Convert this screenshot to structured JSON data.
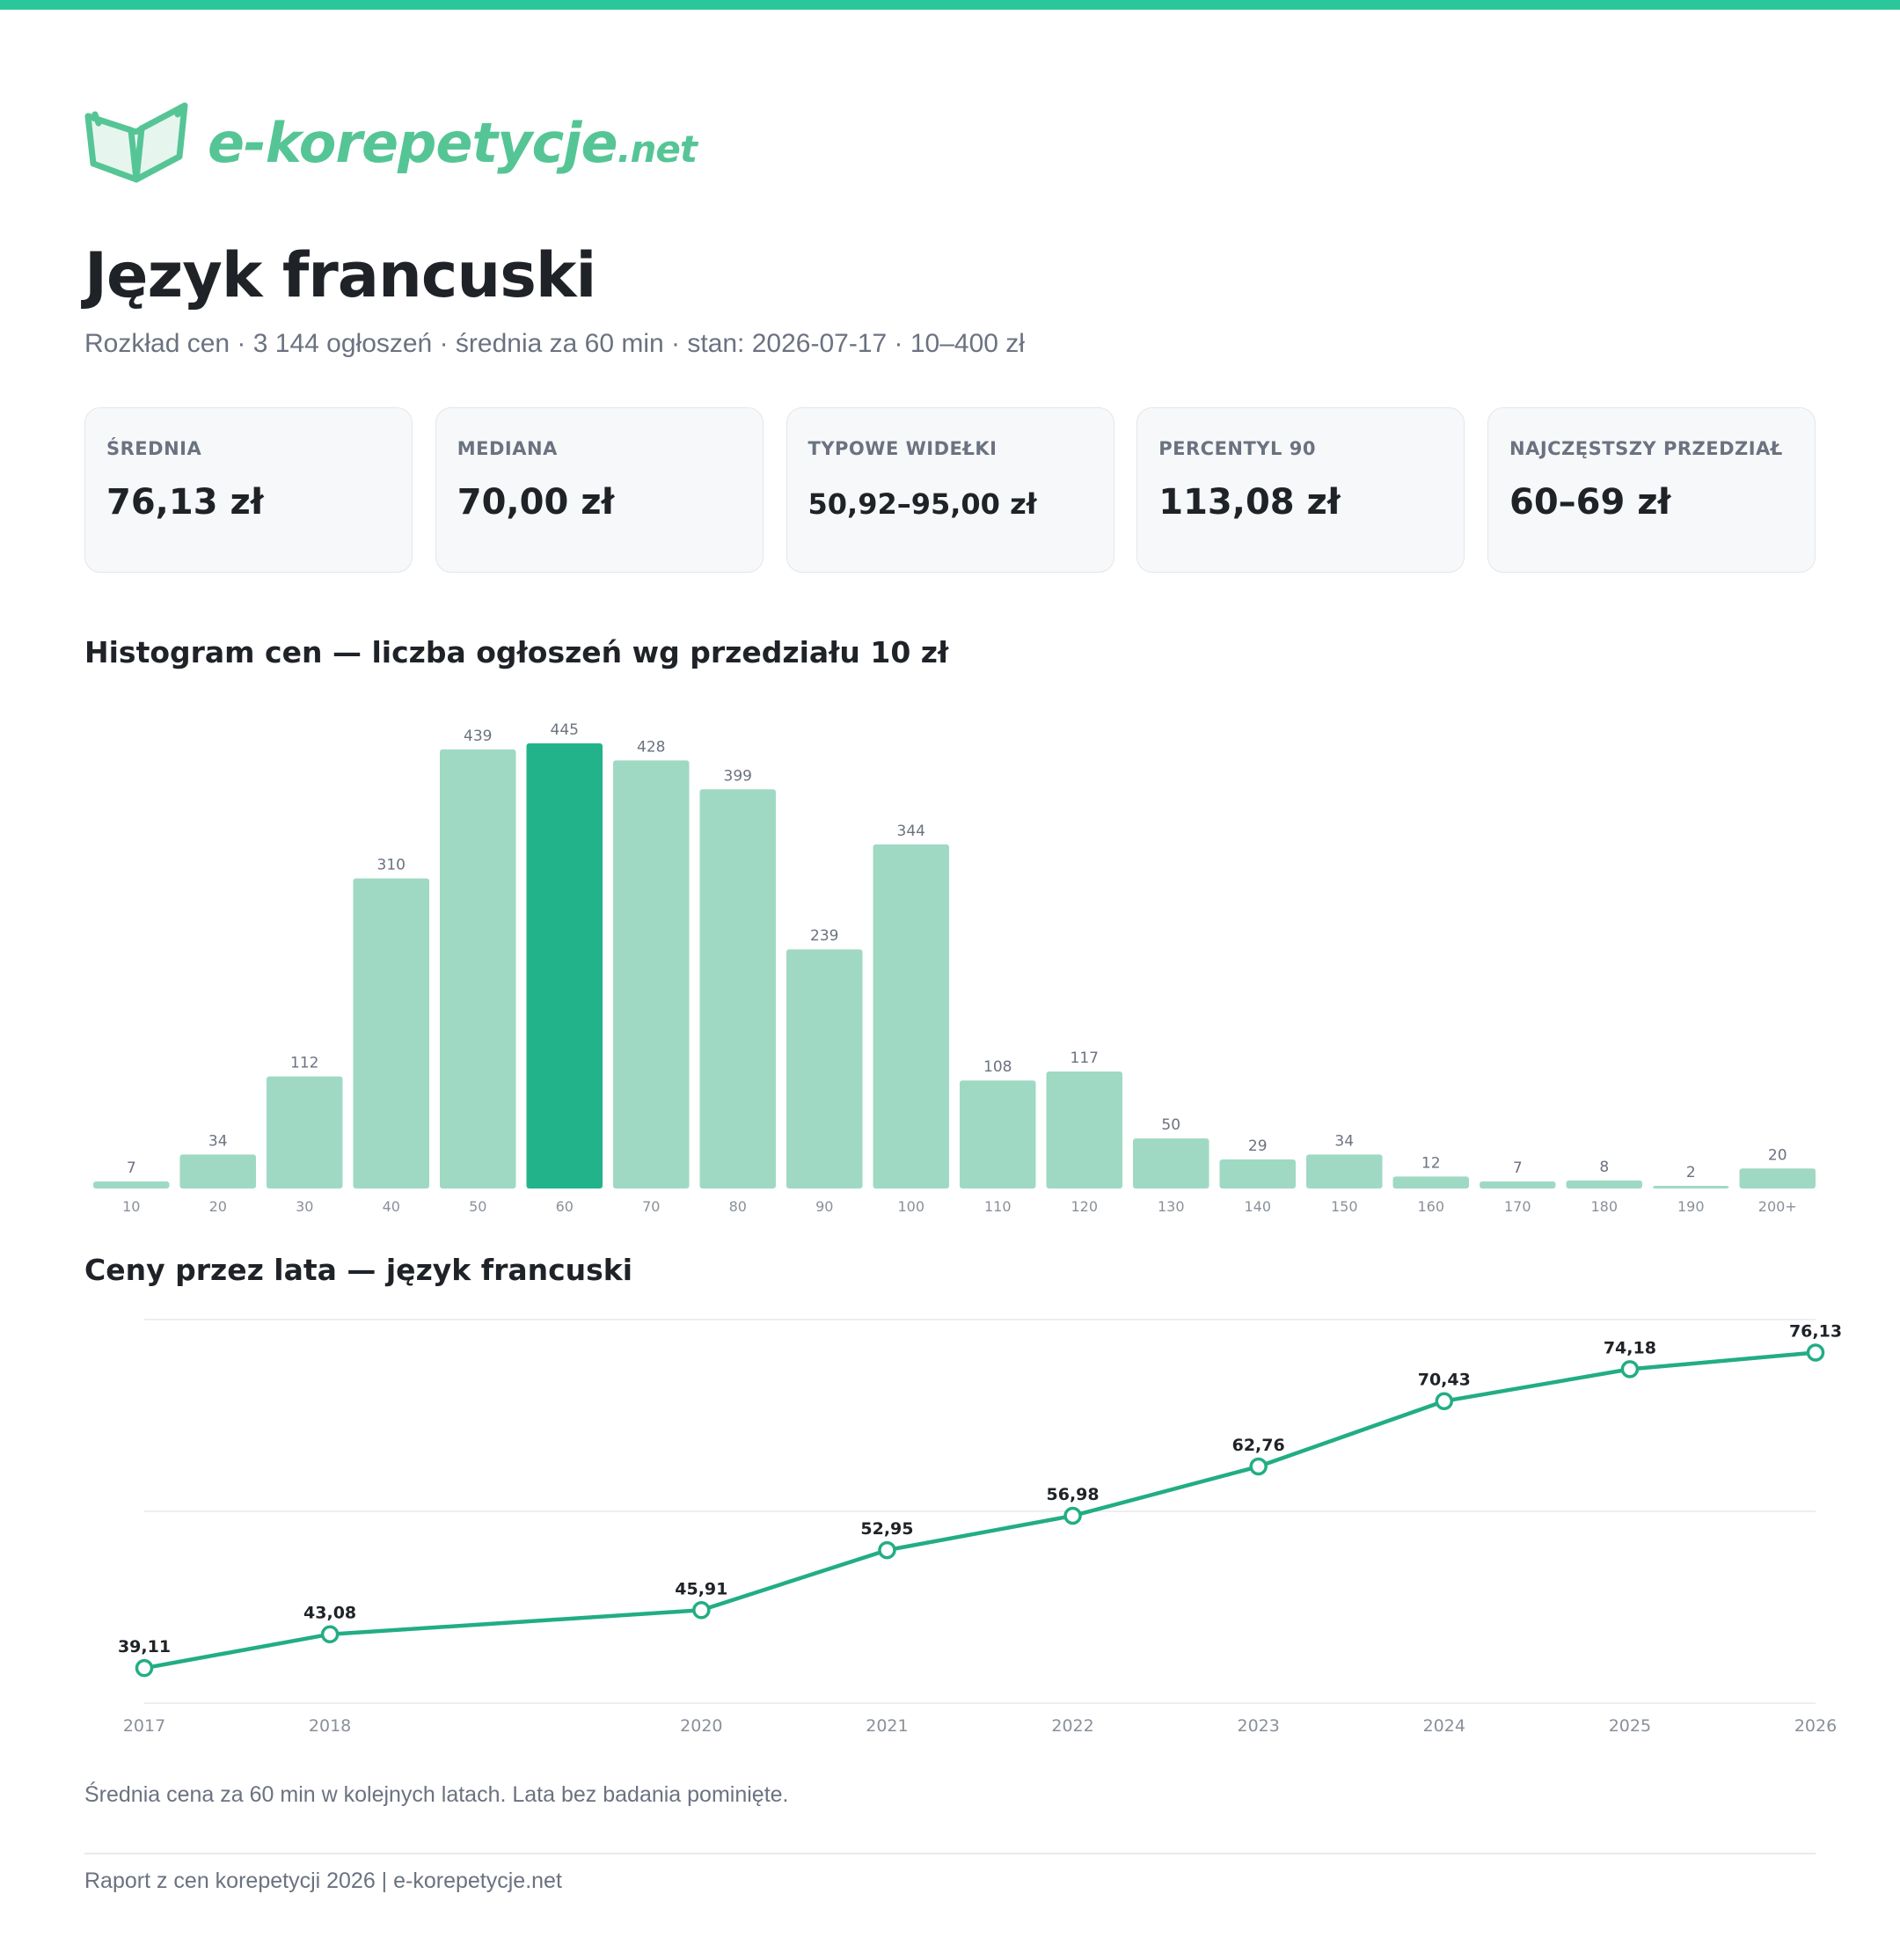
{
  "brand": {
    "name_main": "e-korepetycje",
    "name_tld": ".net",
    "color": "#56c596",
    "icon": "book-icon"
  },
  "header": {
    "title": "Język francuski",
    "subtitle": "Rozkład cen · 3 144 ogłoszeń · średnia za 60 min · stan: 2026-07-17 · 10–400 zł"
  },
  "stats": [
    {
      "label": "ŚREDNIA",
      "value": "76,13 zł"
    },
    {
      "label": "MEDIANA",
      "value": "70,00 zł"
    },
    {
      "label": "TYPOWE WIDEŁKI",
      "value": "50,92–95,00 zł"
    },
    {
      "label": "PERCENTYL 90",
      "value": "113,08 zł"
    },
    {
      "label": "NAJCZĘSTSZY PRZEDZIAŁ",
      "value": "60–69 zł"
    }
  ],
  "histogram": {
    "title": "Histogram cen — liczba ogłoszeń wg przedziału 10 zł"
  },
  "line": {
    "title": "Ceny przez lata — język francuski",
    "note": "Średnia cena za 60 min w kolejnych latach. Lata bez badania pominięte."
  },
  "footer": {
    "text": "Raport z cen korepetycji 2026 | e-korepetycje.net"
  },
  "colors": {
    "accent": "#2bc79a",
    "bar": "#9fd9c3",
    "bar_highlight": "#22b38a",
    "line": "#22ad84"
  },
  "chart_data": [
    {
      "type": "bar",
      "title": "Histogram cen — liczba ogłoszeń wg przedziału 10 zł",
      "categories": [
        "10",
        "20",
        "30",
        "40",
        "50",
        "60",
        "70",
        "80",
        "90",
        "100",
        "110",
        "120",
        "130",
        "140",
        "150",
        "160",
        "170",
        "180",
        "190",
        "200+"
      ],
      "values": [
        7,
        34,
        112,
        310,
        439,
        445,
        428,
        399,
        239,
        344,
        108,
        117,
        50,
        29,
        34,
        12,
        7,
        8,
        2,
        20
      ],
      "highlight_category": "60",
      "ylim": [
        0,
        445
      ],
      "grid": false,
      "data_labels": true
    },
    {
      "type": "line",
      "title": "Ceny przez lata — język francuski",
      "x": [
        "2017",
        "2018",
        "2020",
        "2021",
        "2022",
        "2023",
        "2024",
        "2025",
        "2026"
      ],
      "x_numeric": [
        2017,
        2018,
        2020,
        2021,
        2022,
        2023,
        2024,
        2025,
        2026
      ],
      "y": [
        39.11,
        43.08,
        45.91,
        52.95,
        56.98,
        62.76,
        70.43,
        74.18,
        76.13
      ],
      "y_labels": [
        "39,11",
        "43,08",
        "45,91",
        "52,95",
        "56,98",
        "62,76",
        "70,43",
        "74,18",
        "76,13"
      ],
      "ylim": [
        35,
        80
      ],
      "grid": true,
      "markers": "hollow-circle"
    }
  ]
}
